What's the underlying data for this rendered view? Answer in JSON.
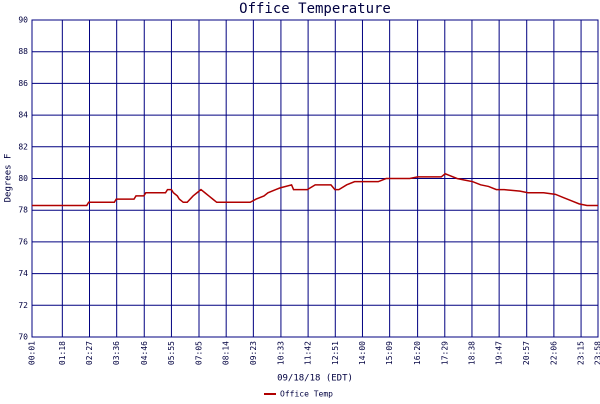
{
  "chart_data": {
    "type": "line",
    "title": "Office Temperature",
    "ylabel": "Degrees F",
    "xlabel": "09/18/18 (EDT)",
    "xlim": [
      1,
      1438
    ],
    "ylim": [
      70,
      90
    ],
    "yticks": [
      70,
      72,
      74,
      76,
      78,
      80,
      82,
      84,
      86,
      88,
      90
    ],
    "xticks": [
      {
        "value": 1,
        "label": "00:01"
      },
      {
        "value": 78,
        "label": "01:18"
      },
      {
        "value": 147,
        "label": "02:27"
      },
      {
        "value": 216,
        "label": "03:36"
      },
      {
        "value": 286,
        "label": "04:46"
      },
      {
        "value": 355,
        "label": "05:55"
      },
      {
        "value": 425,
        "label": "07:05"
      },
      {
        "value": 494,
        "label": "08:14"
      },
      {
        "value": 563,
        "label": "09:23"
      },
      {
        "value": 633,
        "label": "10:33"
      },
      {
        "value": 702,
        "label": "11:42"
      },
      {
        "value": 771,
        "label": "12:51"
      },
      {
        "value": 840,
        "label": "14:00"
      },
      {
        "value": 909,
        "label": "15:09"
      },
      {
        "value": 980,
        "label": "16:20"
      },
      {
        "value": 1049,
        "label": "17:29"
      },
      {
        "value": 1118,
        "label": "18:38"
      },
      {
        "value": 1187,
        "label": "19:47"
      },
      {
        "value": 1257,
        "label": "20:57"
      },
      {
        "value": 1326,
        "label": "22:06"
      },
      {
        "value": 1395,
        "label": "23:15"
      },
      {
        "value": 1438,
        "label": "23:58"
      }
    ],
    "grid": true,
    "legend": "bottom",
    "x": [
      1,
      140,
      145,
      210,
      215,
      260,
      265,
      285,
      290,
      340,
      345,
      355,
      360,
      370,
      375,
      385,
      395,
      410,
      420,
      430,
      440,
      450,
      460,
      470,
      480,
      555,
      570,
      590,
      600,
      620,
      630,
      660,
      665,
      700,
      720,
      760,
      770,
      780,
      800,
      820,
      840,
      880,
      900,
      960,
      980,
      1000,
      1040,
      1050,
      1060,
      1080,
      1100,
      1120,
      1140,
      1160,
      1180,
      1200,
      1240,
      1260,
      1300,
      1330,
      1350,
      1370,
      1390,
      1410,
      1438
    ],
    "series": [
      {
        "name": "Office Temp",
        "color": "#b00000",
        "values": [
          78.3,
          78.3,
          78.5,
          78.5,
          78.7,
          78.7,
          78.9,
          78.9,
          79.1,
          79.1,
          79.3,
          79.3,
          79.1,
          78.9,
          78.7,
          78.5,
          78.5,
          78.9,
          79.1,
          79.3,
          79.1,
          78.9,
          78.7,
          78.5,
          78.5,
          78.5,
          78.7,
          78.9,
          79.1,
          79.3,
          79.4,
          79.6,
          79.3,
          79.3,
          79.6,
          79.6,
          79.3,
          79.3,
          79.6,
          79.8,
          79.8,
          79.8,
          80.0,
          80.0,
          80.1,
          80.1,
          80.1,
          80.3,
          80.2,
          80.0,
          79.9,
          79.8,
          79.6,
          79.5,
          79.3,
          79.3,
          79.2,
          79.1,
          79.1,
          79.0,
          78.8,
          78.6,
          78.4,
          78.3,
          78.3
        ]
      }
    ]
  }
}
